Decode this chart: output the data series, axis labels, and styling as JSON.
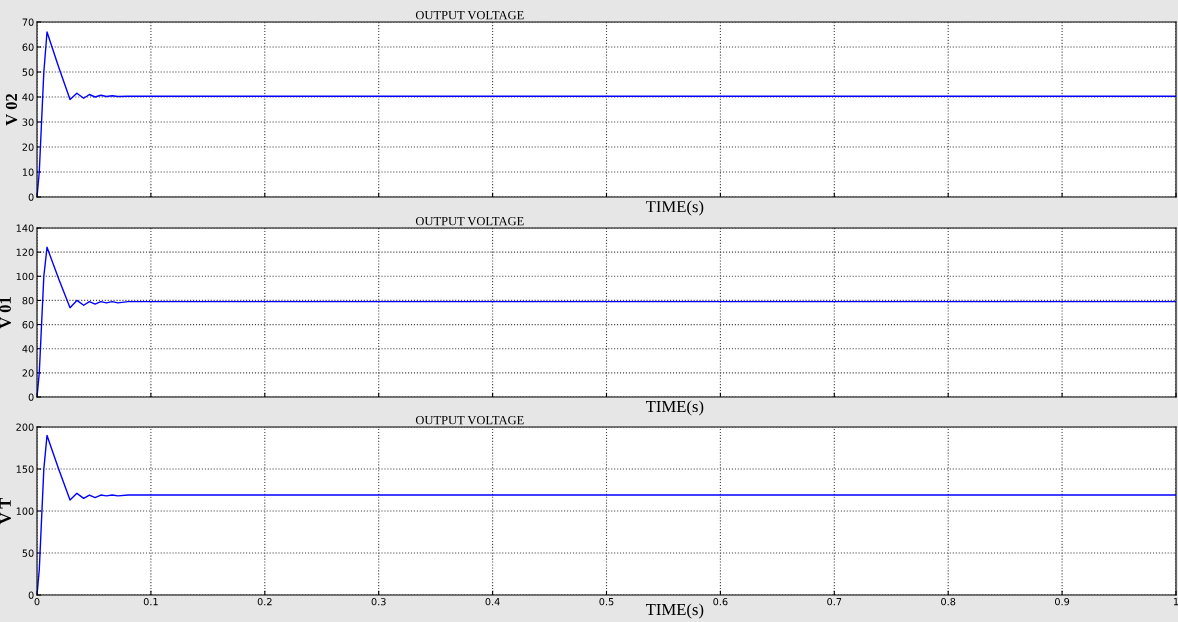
{
  "chart_data": [
    {
      "type": "line",
      "title": "OUTPUT VOLTAGE",
      "xlabel": "TIME(s)",
      "ylabel": "V 02",
      "x": [
        0,
        0.002,
        0.004,
        0.006,
        0.0088,
        0.019,
        0.029,
        0.035,
        0.041,
        0.046,
        0.051,
        0.056,
        0.061,
        0.066,
        0.071,
        0.08,
        0.1,
        1.0
      ],
      "series": [
        {
          "color": "#0000ff",
          "values": [
            0,
            10,
            30,
            50,
            66,
            52,
            39,
            41.5,
            39.5,
            41,
            40,
            40.7,
            40.2,
            40.5,
            40.2,
            40.3,
            40.3,
            40.3
          ]
        }
      ],
      "xlim": [
        0,
        1
      ],
      "xticks": [
        0,
        0.1,
        0.2,
        0.3,
        0.4,
        0.5,
        0.6,
        0.7,
        0.8,
        0.9,
        1
      ],
      "ylim": [
        0,
        70
      ],
      "yticks": [
        0,
        10,
        20,
        30,
        40,
        50,
        60,
        70
      ],
      "tick_labels": "y",
      "grid": true,
      "line_style": "solid"
    },
    {
      "type": "line",
      "title": "OUTPUT VOLTAGE",
      "xlabel": "TIME(s)",
      "ylabel": "V 01",
      "x": [
        0,
        0.002,
        0.004,
        0.006,
        0.0088,
        0.019,
        0.029,
        0.035,
        0.041,
        0.046,
        0.051,
        0.056,
        0.061,
        0.066,
        0.071,
        0.08,
        0.1,
        1.0
      ],
      "series": [
        {
          "color": "#0000ff",
          "values": [
            0,
            20,
            60,
            100,
            124,
            98,
            74,
            80,
            76,
            79,
            77,
            79,
            78,
            79,
            78,
            79,
            79,
            79
          ]
        }
      ],
      "xlim": [
        0,
        1
      ],
      "xticks": [
        0,
        0.1,
        0.2,
        0.3,
        0.4,
        0.5,
        0.6,
        0.7,
        0.8,
        0.9,
        1
      ],
      "ylim": [
        0,
        140
      ],
      "yticks": [
        0,
        20,
        40,
        60,
        80,
        100,
        120,
        140
      ],
      "tick_labels": "y",
      "grid": true,
      "line_style": "solid"
    },
    {
      "type": "line",
      "title": "OUTPUT VOLTAGE",
      "xlabel": "TIME(s)",
      "ylabel": "V T",
      "x": [
        0,
        0.002,
        0.004,
        0.006,
        0.0088,
        0.019,
        0.029,
        0.035,
        0.041,
        0.046,
        0.051,
        0.056,
        0.061,
        0.066,
        0.071,
        0.08,
        0.1,
        1.0
      ],
      "series": [
        {
          "color": "#0000ff",
          "values": [
            0,
            30,
            90,
            150,
            190,
            150,
            113,
            121,
            115,
            119,
            116,
            119,
            118,
            119,
            118,
            119,
            119,
            119
          ]
        }
      ],
      "xlim": [
        0,
        1
      ],
      "xticks": [
        0,
        0.1,
        0.2,
        0.3,
        0.4,
        0.5,
        0.6,
        0.7,
        0.8,
        0.9,
        1
      ],
      "ylim": [
        0,
        200
      ],
      "yticks": [
        0,
        50,
        100,
        150,
        200
      ],
      "grid": true,
      "line_style": "solid"
    }
  ]
}
